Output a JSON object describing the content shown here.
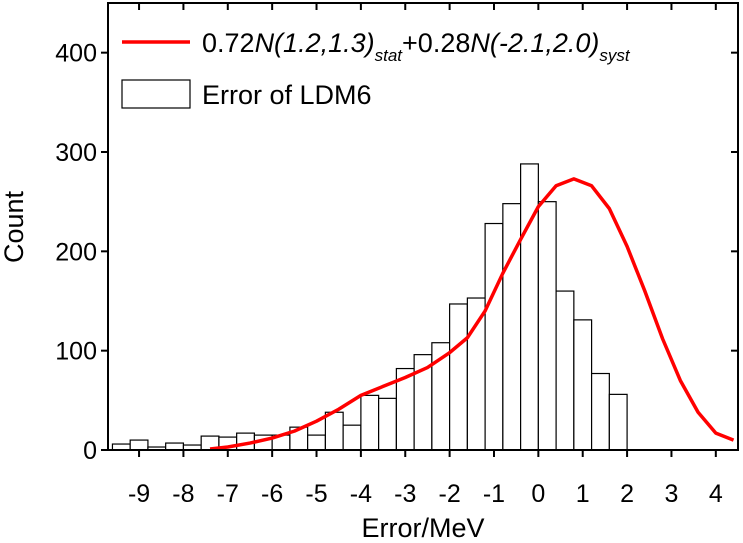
{
  "chart_data": {
    "type": "bar",
    "title": "",
    "xlabel": "Error/MeV",
    "ylabel": "Count",
    "xlim": [
      -9.7,
      4.5
    ],
    "ylim": [
      0,
      450
    ],
    "xticks": [
      -9,
      -8,
      -7,
      -6,
      -5,
      -4,
      -3,
      -2,
      -1,
      0,
      1,
      2,
      3,
      4
    ],
    "xtick_labels": [
      "-9",
      "-8",
      "-7",
      "-6",
      "-5",
      "-4",
      "-3",
      "-2",
      "-1",
      "0",
      "1",
      "2",
      "3",
      "4"
    ],
    "yticks": [
      0,
      100,
      200,
      300,
      400
    ],
    "ytick_labels": [
      "0",
      "100",
      "200",
      "300",
      "400"
    ],
    "grid": false,
    "legend_position": "top",
    "histogram": {
      "name": "Error of LDM6",
      "bin_width": 0.4,
      "bin_centers": [
        -9.4,
        -9.0,
        -8.6,
        -8.2,
        -7.8,
        -7.4,
        -7.0,
        -6.6,
        -6.2,
        -5.8,
        -5.4,
        -5.0,
        -4.6,
        -4.2,
        -3.8,
        -3.4,
        -3.0,
        -2.6,
        -2.2,
        -1.8,
        -1.4,
        -1.0,
        -0.6,
        -0.2,
        0.2,
        0.6,
        1.0,
        1.4,
        1.8,
        2.2,
        2.6,
        3.0,
        3.4,
        3.8,
        4.2
      ],
      "counts": [
        6,
        10,
        3,
        7,
        5,
        14,
        13,
        17,
        15,
        15,
        23,
        15,
        38,
        25,
        55,
        52,
        82,
        96,
        108,
        147,
        153,
        228,
        248,
        288,
        250,
        160,
        131,
        77,
        56,
        0,
        0,
        0,
        0,
        0,
        0
      ]
    },
    "fit": {
      "name_parts": [
        "0.72",
        "N(1.2,1.3)",
        "stat",
        "+0.28",
        "N(-2.1,2.0)",
        "syst"
      ],
      "color": "#ff0000",
      "x": [
        -7.4,
        -7.0,
        -6.5,
        -6.0,
        -5.5,
        -5.0,
        -4.5,
        -4.0,
        -3.5,
        -3.0,
        -2.5,
        -2.0,
        -1.6,
        -1.2,
        -0.8,
        -0.4,
        0.0,
        0.4,
        0.8,
        1.2,
        1.6,
        2.0,
        2.4,
        2.8,
        3.2,
        3.6,
        4.0,
        4.4
      ],
      "y": [
        1,
        3,
        7,
        12,
        19,
        29,
        41,
        55,
        64,
        73,
        83,
        98,
        113,
        140,
        178,
        212,
        245,
        266,
        273,
        266,
        243,
        205,
        160,
        112,
        70,
        38,
        17,
        10
      ]
    }
  }
}
